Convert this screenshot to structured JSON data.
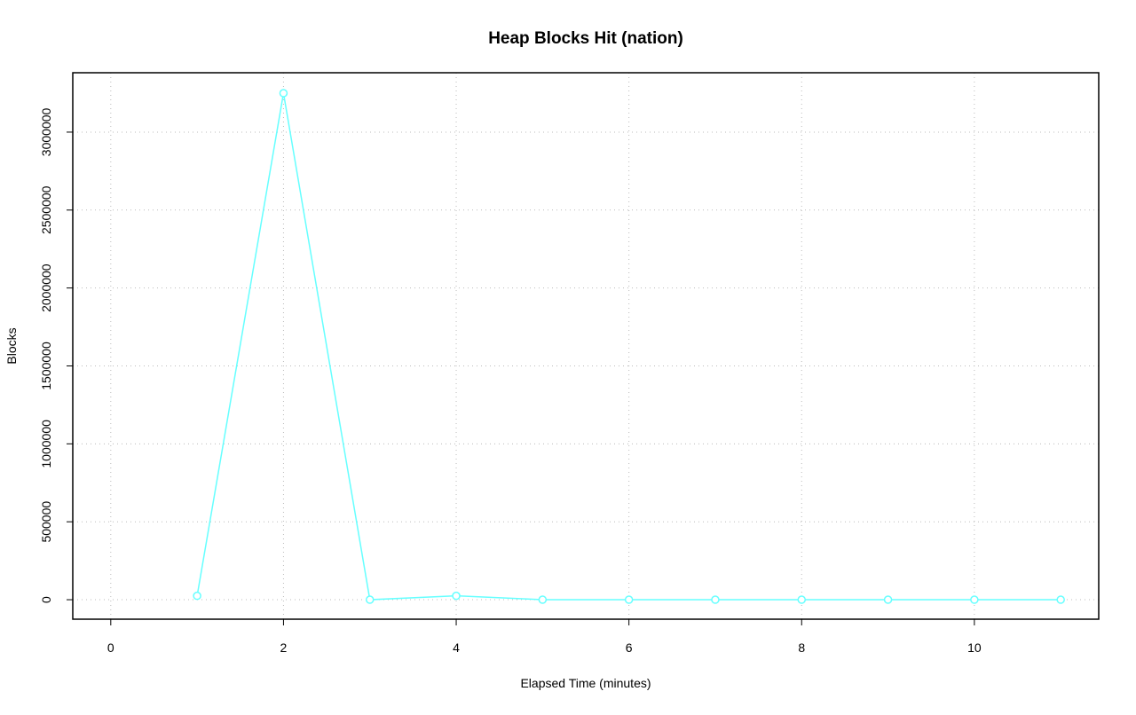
{
  "chart_data": {
    "type": "line",
    "title": "Heap Blocks Hit (nation)",
    "x_label": "Elapsed Time (minutes)",
    "y_label": "Blocks",
    "x": [
      1,
      2,
      3,
      4,
      5,
      6,
      7,
      8,
      9,
      10,
      11
    ],
    "series": [
      {
        "name": "Blocks",
        "color": "#66ffff",
        "values": [
          25000,
          3250000,
          0,
          25000,
          0,
          0,
          0,
          0,
          0,
          0,
          0
        ]
      }
    ],
    "xlim": [
      -0.44,
      11.44
    ],
    "xticks": [
      0,
      2,
      4,
      6,
      8,
      10
    ],
    "ylim": [
      -125000,
      3381000
    ],
    "yticks": [
      0,
      500000,
      1000000,
      1500000,
      2000000,
      2500000,
      3000000
    ],
    "grid": true
  }
}
